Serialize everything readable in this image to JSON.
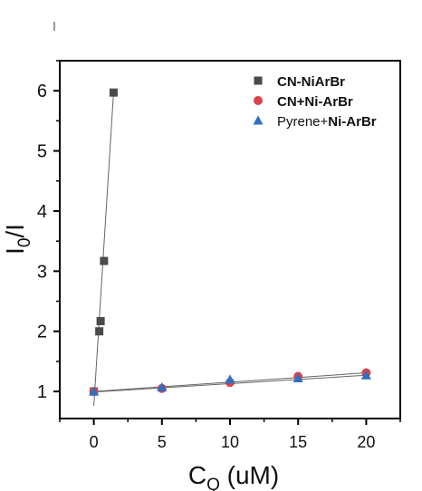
{
  "chart_data": {
    "type": "scatter",
    "xlabel_main": "C",
    "xlabel_sub": "Q",
    "xlabel_unit": " (uM)",
    "ylabel_main": "I",
    "ylabel_sub": "0",
    "ylabel_rest": "/I",
    "xlim": [
      -2.5,
      22.5
    ],
    "ylim": [
      0.55,
      6.5
    ],
    "xticks": [
      0,
      5,
      10,
      15,
      20
    ],
    "yticks": [
      1,
      2,
      3,
      4,
      5,
      6
    ],
    "legend_position": "top-right",
    "series": [
      {
        "name": "CN-NiArBr",
        "name_parts": [
          {
            "text": "CN-NiArBr",
            "bold": true
          }
        ],
        "marker": "square",
        "color": "#4a4a4a",
        "x": [
          0,
          0.4,
          0.5,
          0.75,
          1.45
        ],
        "y": [
          1.0,
          2.0,
          2.17,
          3.17,
          5.97
        ],
        "fit": {
          "x": [
            0,
            1.45
          ],
          "y": [
            0.76,
            5.97
          ]
        }
      },
      {
        "name": "CN+Ni-ArBr",
        "name_parts": [
          {
            "text": "CN+Ni-ArBr",
            "bold": true
          }
        ],
        "marker": "circle",
        "color": "#d9434a",
        "x": [
          0,
          5,
          10,
          15,
          20
        ],
        "y": [
          1.0,
          1.05,
          1.15,
          1.25,
          1.31
        ],
        "fit": {
          "x": [
            0,
            20
          ],
          "y": [
            1.0,
            1.31
          ]
        }
      },
      {
        "name": "Pyrene+Ni-ArBr",
        "name_parts": [
          {
            "text": "Pyrene+",
            "bold": false
          },
          {
            "text": "Ni-ArBr",
            "bold": true
          }
        ],
        "marker": "triangle",
        "color": "#2f6fc0",
        "x": [
          0,
          5,
          10,
          15,
          20
        ],
        "y": [
          1.0,
          1.07,
          1.2,
          1.22,
          1.27
        ],
        "fit": {
          "x": [
            0,
            20
          ],
          "y": [
            0.99,
            1.27
          ]
        }
      }
    ]
  }
}
